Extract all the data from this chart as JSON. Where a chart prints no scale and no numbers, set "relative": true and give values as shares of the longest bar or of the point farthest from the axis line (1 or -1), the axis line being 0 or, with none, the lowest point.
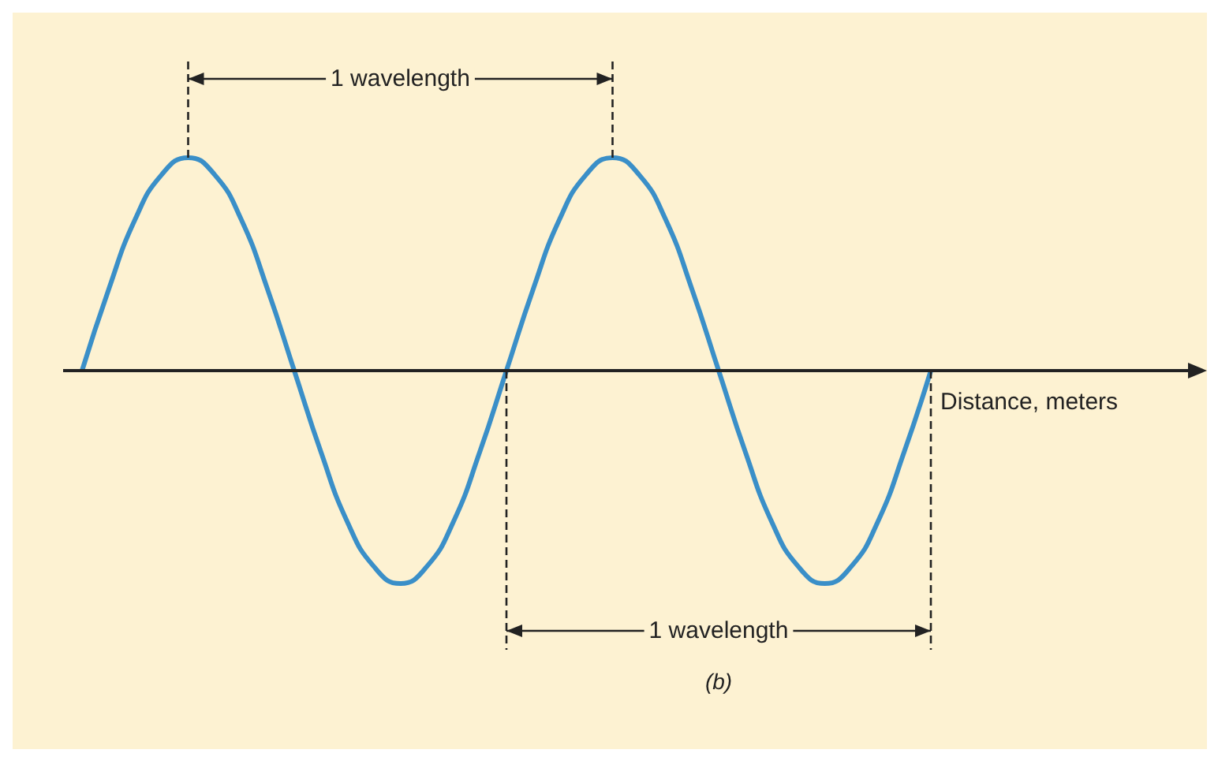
{
  "chart_data": {
    "type": "line",
    "relative": true,
    "color": "#3a8fc8",
    "xlabel": "Distance, meters",
    "categories": [
      null,
      null,
      null,
      null,
      null,
      null,
      null,
      null,
      null,
      null,
      null,
      null,
      null,
      null,
      null,
      null,
      null,
      null,
      null,
      null,
      null,
      null,
      null,
      null,
      null,
      null,
      null,
      null,
      null,
      null,
      null,
      null,
      null
    ],
    "values": [
      0,
      0.38,
      0.71,
      0.92,
      1,
      0.92,
      0.71,
      0.38,
      0,
      -0.38,
      -0.71,
      -0.92,
      -1,
      -0.92,
      -0.71,
      -0.38,
      0,
      0.38,
      0.71,
      0.92,
      1,
      0.92,
      0.71,
      0.38,
      0,
      -0.38,
      -0.71,
      -0.92,
      -1,
      -0.92,
      -0.71,
      -0.38,
      0
    ],
    "annotations": [
      "1 wavelength",
      "1 wavelength",
      "(b)"
    ],
    "marker": "none"
  }
}
